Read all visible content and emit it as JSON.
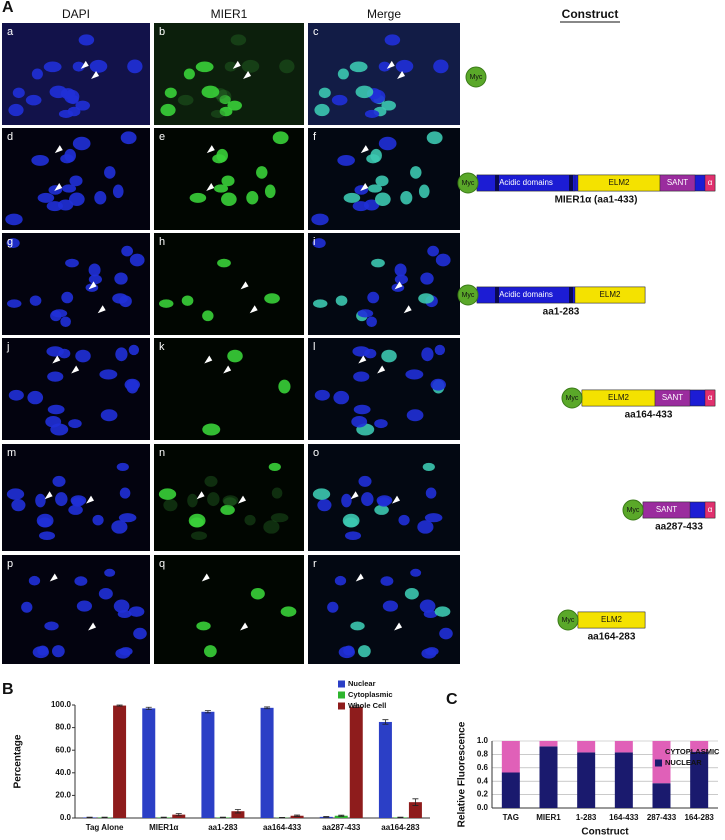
{
  "figure": {
    "panel_labels": [
      "A",
      "B",
      "C"
    ],
    "column_headers": [
      "DAPI",
      "MIER1",
      "Merge",
      "Construct"
    ],
    "image_labels": [
      "a",
      "b",
      "c",
      "d",
      "e",
      "f",
      "g",
      "h",
      "i",
      "j",
      "k",
      "l",
      "m",
      "n",
      "o",
      "p",
      "q",
      "r"
    ],
    "constructs": [
      {
        "tag": "Myc"
      },
      {
        "tag": "Myc",
        "domains": [
          "Acidic domains",
          "ELM2",
          "SANT",
          "α"
        ],
        "label": "MIER1α (aa1-433)"
      },
      {
        "tag": "Myc",
        "domains": [
          "Acidic domains",
          "ELM2"
        ],
        "label": "aa1-283"
      },
      {
        "tag": "Myc",
        "domains": [
          "ELM2",
          "SANT",
          "α"
        ],
        "label": "aa164-433"
      },
      {
        "tag": "Myc",
        "domains": [
          "SANT",
          "α"
        ],
        "label": "aa287-433"
      },
      {
        "tag": "Myc",
        "domains": [
          "ELM2"
        ],
        "label": "aa164-283"
      }
    ]
  },
  "chart_data": [
    {
      "type": "bar",
      "ylabel": "Percentage",
      "categories": [
        "Tag Alone",
        "MIER1α",
        "aa1-283",
        "aa164-433",
        "aa287-433",
        "aa164-283"
      ],
      "series": [
        {
          "name": "Nuclear",
          "color": "#2b3fc6",
          "values": [
            0.5,
            97,
            94,
            97.5,
            1,
            85
          ],
          "errors": [
            0.2,
            1,
            1,
            0.8,
            0.3,
            2
          ]
        },
        {
          "name": "Cytoplasmic",
          "color": "#2eb52e",
          "values": [
            0.5,
            0.5,
            0.5,
            0.3,
            2,
            0.5
          ],
          "errors": [
            0.2,
            0.2,
            0.2,
            0.2,
            0.5,
            0.2
          ]
        },
        {
          "name": "Whole Cell",
          "color": "#8e1c1c",
          "values": [
            99.5,
            3,
            6,
            2,
            98.5,
            14
          ],
          "errors": [
            0.5,
            1,
            1.5,
            0.6,
            0.8,
            3
          ]
        }
      ],
      "ylim": [
        0,
        100
      ],
      "yticks": [
        {
          "value": 0,
          "label": "0.0"
        },
        {
          "value": 20,
          "label": "20.0"
        },
        {
          "value": 40,
          "label": "40.0"
        },
        {
          "value": 60,
          "label": "60.0"
        },
        {
          "value": 80,
          "label": "80.0"
        },
        {
          "value": 100,
          "label": "100.0"
        }
      ],
      "legend": "top-right"
    },
    {
      "type": "bar",
      "stacked": true,
      "xlabel": "Construct",
      "ylabel": "Relative Fluorescence",
      "categories": [
        "TAG",
        "MIER1",
        "1-283",
        "164-433",
        "287-433",
        "164-283"
      ],
      "series": [
        {
          "name": "NUCLEAR",
          "color": "#1a1a6e",
          "values": [
            0.53,
            0.92,
            0.83,
            0.83,
            0.37,
            0.84
          ]
        },
        {
          "name": "CYTOPLASMIC",
          "color": "#e060b8",
          "values": [
            0.47,
            0.08,
            0.17,
            0.17,
            0.63,
            0.16
          ]
        }
      ],
      "ylim": [
        0,
        1
      ],
      "yticks": [
        {
          "value": 0,
          "label": "0.0"
        },
        {
          "value": 0.2,
          "label": "0.2"
        },
        {
          "value": 0.4,
          "label": "0.4"
        },
        {
          "value": 0.6,
          "label": "0.6"
        },
        {
          "value": 0.8,
          "label": "0.8"
        },
        {
          "value": 1,
          "label": "1.0"
        }
      ],
      "grid": true,
      "legend": "top-right"
    }
  ]
}
